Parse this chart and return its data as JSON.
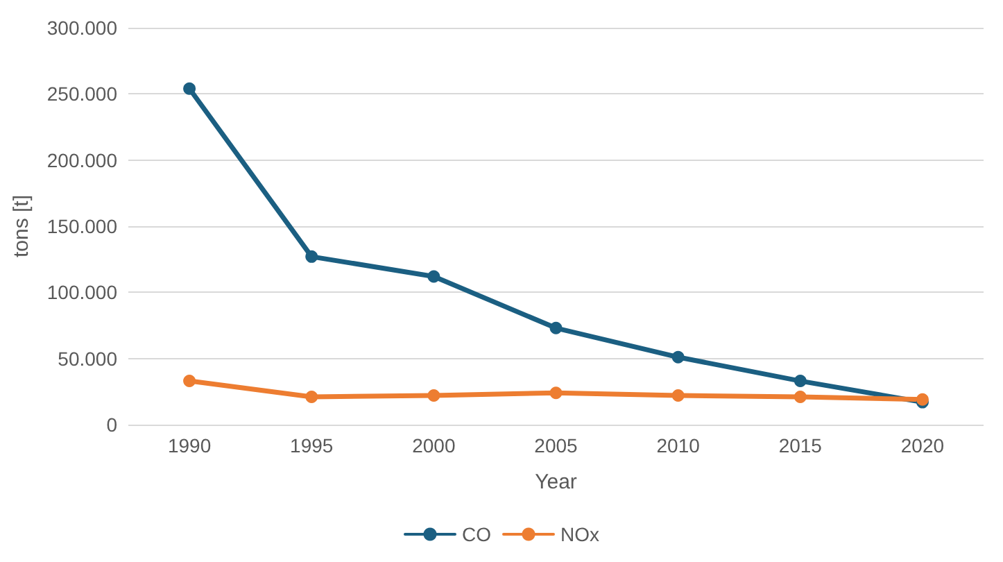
{
  "chart_data": {
    "type": "line",
    "xlabel": "Year",
    "ylabel": "tons [t]",
    "categories": [
      "1990",
      "1995",
      "2000",
      "2005",
      "2010",
      "2015",
      "2020"
    ],
    "series": [
      {
        "name": "CO",
        "color": "#1b5f82",
        "values": [
          254000,
          127000,
          112000,
          73000,
          51000,
          33000,
          17000
        ]
      },
      {
        "name": "NOx",
        "color": "#ed7d31",
        "values": [
          33000,
          21000,
          22000,
          24000,
          22000,
          21000,
          19000
        ]
      }
    ],
    "ylim": [
      0,
      300000
    ],
    "yticks": [
      {
        "value": 0,
        "label": "0"
      },
      {
        "value": 50000,
        "label": "50.000"
      },
      {
        "value": 100000,
        "label": "100.000"
      },
      {
        "value": 150000,
        "label": "150.000"
      },
      {
        "value": 200000,
        "label": "200.000"
      },
      {
        "value": 250000,
        "label": "250.000"
      },
      {
        "value": 300000,
        "label": "300.000"
      }
    ],
    "grid": "y",
    "legend": "bottom",
    "marker": "circle",
    "line_style": "solid"
  }
}
